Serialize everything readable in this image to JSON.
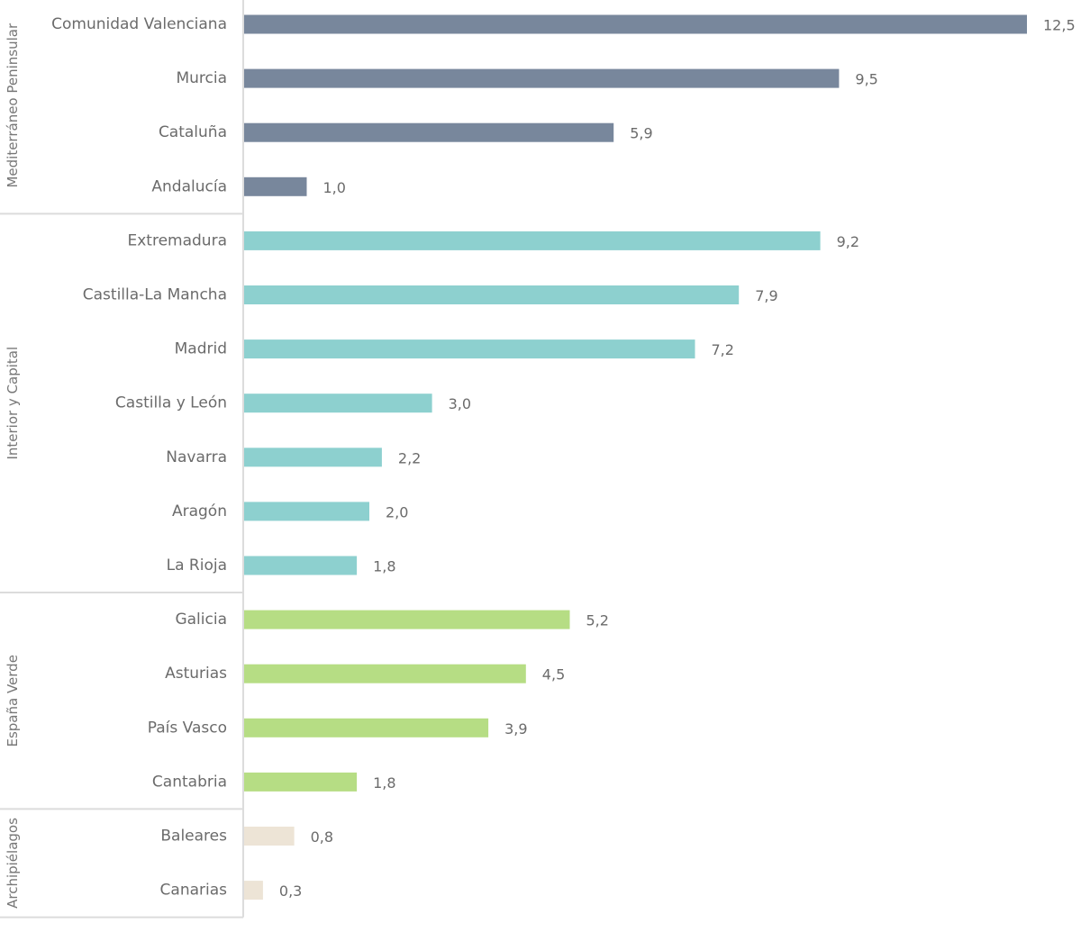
{
  "chart_data": {
    "type": "bar",
    "orientation": "horizontal",
    "xlim": [
      0,
      12.5
    ],
    "grid": false,
    "groups": [
      {
        "name": "Mediterráneo Peninsular",
        "color": "#78879c",
        "items": [
          {
            "category": "Comunidad Valenciana",
            "value": 12.5,
            "label": "12,5"
          },
          {
            "category": "Murcia",
            "value": 9.5,
            "label": "9,5"
          },
          {
            "category": "Cataluña",
            "value": 5.9,
            "label": "5,9"
          },
          {
            "category": "Andalucía",
            "value": 1.0,
            "label": "1,0"
          }
        ]
      },
      {
        "name": "Interior y Capital",
        "color": "#8dd0cf",
        "items": [
          {
            "category": "Extremadura",
            "value": 9.2,
            "label": "9,2"
          },
          {
            "category": "Castilla-La Mancha",
            "value": 7.9,
            "label": "7,9"
          },
          {
            "category": "Madrid",
            "value": 7.2,
            "label": "7,2"
          },
          {
            "category": "Castilla y León",
            "value": 3.0,
            "label": "3,0"
          },
          {
            "category": "Navarra",
            "value": 2.2,
            "label": "2,2"
          },
          {
            "category": "Aragón",
            "value": 2.0,
            "label": "2,0"
          },
          {
            "category": "La Rioja",
            "value": 1.8,
            "label": "1,8"
          }
        ]
      },
      {
        "name": "España Verde",
        "color": "#b6dd84",
        "items": [
          {
            "category": "Galicia",
            "value": 5.2,
            "label": "5,2"
          },
          {
            "category": "Asturias",
            "value": 4.5,
            "label": "4,5"
          },
          {
            "category": "País Vasco",
            "value": 3.9,
            "label": "3,9"
          },
          {
            "category": "Cantabria",
            "value": 1.8,
            "label": "1,8"
          }
        ]
      },
      {
        "name": "Archipiélagos",
        "color": "#ede4d6",
        "items": [
          {
            "category": "Baleares",
            "value": 0.8,
            "label": "0,8"
          },
          {
            "category": "Canarias",
            "value": 0.3,
            "label": "0,3"
          }
        ]
      }
    ]
  }
}
